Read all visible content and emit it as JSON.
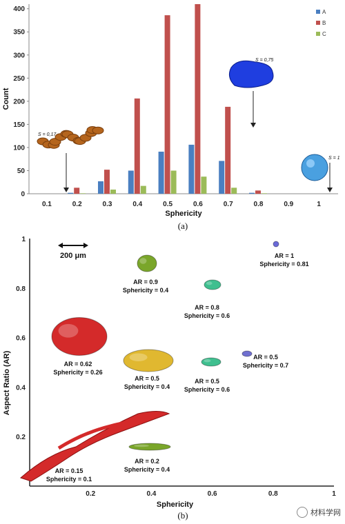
{
  "chart_data": [
    {
      "type": "bar",
      "categories": [
        "0.1",
        "0.2",
        "0.3",
        "0.4",
        "0.5",
        "0.6",
        "0.7",
        "0.8",
        "0.9",
        "1"
      ],
      "series": [
        {
          "name": "A",
          "color": "#4a7fc1",
          "values": [
            0,
            2,
            27,
            50,
            91,
            106,
            71,
            2,
            0,
            0
          ]
        },
        {
          "name": "B",
          "color": "#c0504d",
          "values": [
            0,
            13,
            52,
            206,
            386,
            410,
            188,
            7,
            0,
            0
          ]
        },
        {
          "name": "C",
          "color": "#9bbb59",
          "values": [
            0,
            1,
            9,
            17,
            50,
            37,
            13,
            1,
            0,
            0
          ]
        }
      ],
      "yticks": [
        "0",
        "50",
        "100",
        "150",
        "200",
        "250",
        "300",
        "350",
        "400"
      ],
      "xlabel": "Sphericity",
      "ylabel": "Count",
      "ylim": [
        0,
        410
      ],
      "legend": "top-right",
      "annotations": [
        {
          "text": "S = 0,17",
          "x": "0.2"
        },
        {
          "text": "S = 0,75",
          "x": "0.75"
        },
        {
          "text": "S = 1",
          "x": "1"
        }
      ],
      "caption": "(a)"
    },
    {
      "type": "scatter",
      "xlabel": "Sphericity",
      "ylabel": "Aspect Ratio (AR)",
      "xlim": [
        0,
        1
      ],
      "ylim": [
        0,
        1
      ],
      "xticks": [
        "0.2",
        "0.4",
        "0.6",
        "0.8",
        "1"
      ],
      "yticks": [
        "0.2",
        "0.4",
        "0.6",
        "0.8",
        "1"
      ],
      "scale_bar": "200 μm",
      "points": [
        {
          "ar_label": "AR = 1",
          "sph_label": "Sphericity = 0.81",
          "x": 0.81,
          "y": 1.0,
          "color": "#6a6ad8"
        },
        {
          "ar_label": "AR = 0.9",
          "sph_label": "Sphericity = 0.4",
          "x": 0.4,
          "y": 0.9,
          "color": "#7aa62a"
        },
        {
          "ar_label": "AR = 0.8",
          "sph_label": "Sphericity = 0.6",
          "x": 0.6,
          "y": 0.8,
          "color": "#3fbf8f"
        },
        {
          "ar_label": "AR = 0.62",
          "sph_label": "Sphericity = 0.26",
          "x": 0.26,
          "y": 0.62,
          "color": "#d42a2a"
        },
        {
          "ar_label": "AR = 0.5",
          "sph_label": "Sphericity = 0.4",
          "x": 0.4,
          "y": 0.5,
          "color": "#e0b830"
        },
        {
          "ar_label": "AR = 0.5",
          "sph_label": "Sphericity = 0.6",
          "x": 0.6,
          "y": 0.5,
          "color": "#3fbf8f"
        },
        {
          "ar_label": "AR = 0.5",
          "sph_label": "Sphericity = 0.7",
          "x": 0.7,
          "y": 0.5,
          "color": "#7070d0"
        },
        {
          "ar_label": "AR = 0.2",
          "sph_label": "Sphericity = 0.4",
          "x": 0.4,
          "y": 0.2,
          "color": "#7aa62a"
        },
        {
          "ar_label": "AR = 0.15",
          "sph_label": "Sphericity = 0.1",
          "x": 0.1,
          "y": 0.15,
          "color": "#d42a2a"
        }
      ],
      "caption": "(b)"
    }
  ],
  "watermark": {
    "text": "材料学网"
  }
}
